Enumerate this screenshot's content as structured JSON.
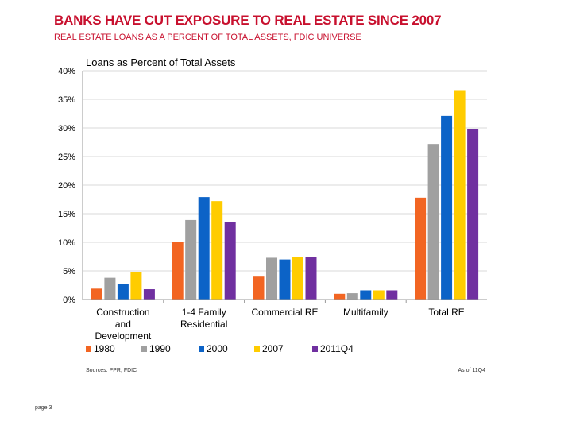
{
  "slide": {
    "title": "BANKS HAVE CUT EXPOSURE TO REAL ESTATE SINCE 2007",
    "subtitle": "REAL ESTATE LOANS AS A PERCENT OF TOTAL ASSETS, FDIC UNIVERSE",
    "page": "page 3"
  },
  "chart_data": {
    "type": "bar",
    "title": "Loans as Percent of Total Assets",
    "categories": [
      "Construction and Development",
      "1-4 Family Residential",
      "Commercial RE",
      "Multifamily",
      "Total RE"
    ],
    "category_lines": [
      [
        "Construction",
        "and",
        "Development"
      ],
      [
        "1-4 Family",
        "Residential"
      ],
      [
        "Commercial RE"
      ],
      [
        "Multifamily"
      ],
      [
        "Total RE"
      ]
    ],
    "series": [
      {
        "name": "1980",
        "color": "#f26522",
        "values": [
          1.9,
          10.1,
          4.0,
          1.0,
          17.8
        ]
      },
      {
        "name": "1990",
        "color": "#a0a0a0",
        "values": [
          3.8,
          13.9,
          7.3,
          1.1,
          27.2
        ]
      },
      {
        "name": "2000",
        "color": "#0c63c7",
        "values": [
          2.7,
          17.9,
          7.0,
          1.6,
          32.1
        ]
      },
      {
        "name": "2007",
        "color": "#ffcc00",
        "values": [
          4.8,
          17.2,
          7.4,
          1.6,
          36.6
        ]
      },
      {
        "name": "2011Q4",
        "color": "#7030a0",
        "values": [
          1.8,
          13.5,
          7.5,
          1.6,
          29.8
        ]
      }
    ],
    "yticks": [
      "0%",
      "5%",
      "10%",
      "15%",
      "20%",
      "25%",
      "30%",
      "35%",
      "40%"
    ],
    "ylim": [
      0,
      40
    ],
    "xlabel": "",
    "ylabel": "",
    "grid": true,
    "legend_position": "bottom",
    "source": "Sources: PPR, FDIC",
    "note": "As of 11Q4"
  }
}
